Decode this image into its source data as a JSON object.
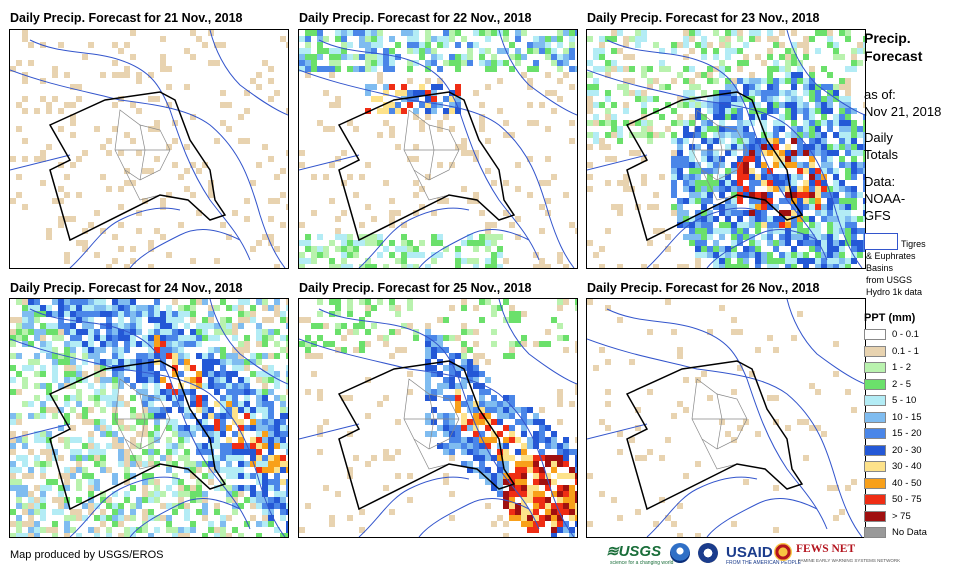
{
  "panels": [
    {
      "title": "Daily Precip. Forecast for 21 Nov., 2018"
    },
    {
      "title": "Daily Precip. Forecast for 22 Nov., 2018"
    },
    {
      "title": "Daily Precip. Forecast for 23 Nov., 2018"
    },
    {
      "title": "Daily Precip. Forecast for 24 Nov., 2018"
    },
    {
      "title": "Daily Precip. Forecast for 25 Nov., 2018"
    },
    {
      "title": "Daily Precip. Forecast for 26 Nov., 2018"
    }
  ],
  "sidebar": {
    "title_line1": "Precip.",
    "title_line2": "Forecast",
    "asof_label": "as of:",
    "asof_date": "Nov 21, 2018",
    "daily_line1": "Daily",
    "daily_line2": "Totals",
    "data_line1": "Data:",
    "data_line2": "NOAA-",
    "data_line3": "GFS",
    "basin_line1": "Tigres",
    "basin_line2": "& Euphrates",
    "basin_line3": "Basins",
    "basin_line4": "from USGS",
    "basin_line5": "Hydro 1k data"
  },
  "legend": {
    "title": "PPT (mm)",
    "items": [
      {
        "label": "0 - 0.1",
        "color": "#ffffff"
      },
      {
        "label": "0.1 - 1",
        "color": "#e8d3b0"
      },
      {
        "label": "1 - 2",
        "color": "#b9f2ae"
      },
      {
        "label": "2 - 5",
        "color": "#6be06b"
      },
      {
        "label": "5 - 10",
        "color": "#b3ecf5"
      },
      {
        "label": "10 - 15",
        "color": "#7fbcf0"
      },
      {
        "label": "15 - 20",
        "color": "#4a86e8"
      },
      {
        "label": "20 - 30",
        "color": "#2458d6"
      },
      {
        "label": "30 - 40",
        "color": "#fde28a"
      },
      {
        "label": "40 - 50",
        "color": "#f8a01a"
      },
      {
        "label": "50 - 75",
        "color": "#ef2d14"
      },
      {
        "label": "> 75",
        "color": "#a01010"
      },
      {
        "label": "No Data",
        "color": "#999999"
      }
    ]
  },
  "credit": "Map produced by USGS/EROS",
  "logos": {
    "usgs": "≋USGS",
    "usgs_tagline": "science for a changing world",
    "usaid": "USAID",
    "usaid_tagline": "FROM THE AMERICAN PEOPLE",
    "fews": "FEWS NET",
    "fews_tagline": "FAMINE EARLY WARNING SYSTEMS NETWORK"
  }
}
